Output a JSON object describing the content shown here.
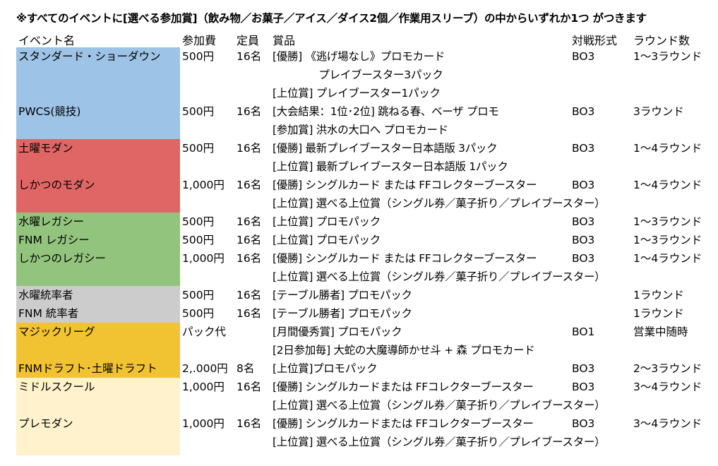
{
  "notice": "※すべてのイベントに[選べる参加賞]（飲み物／お菓子／アイス／ダイス2個／作業用スリーブ）の中からいずれか1つ がつきます",
  "headers": {
    "event": "イベント名",
    "fee": "参加費",
    "capacity": "定員",
    "prize": "賞品",
    "format": "対戦形式",
    "rounds": "ラウンド数"
  },
  "colors": {
    "blue": "#9dc3e6",
    "red": "#e06666",
    "green": "#93c47d",
    "gray": "#cccccc",
    "yellow": "#f1c232",
    "cream": "#fff2cc"
  },
  "rows": [
    {
      "event": "スタンダード・ショーダウン",
      "fee": "500円",
      "capacity": "16名",
      "prize": "[優勝] 《逃げ場なし》プロモカード",
      "format": "BO3",
      "rounds": "1～3ラウンド"
    },
    {
      "event": "",
      "fee": "",
      "capacity": "",
      "prize": "　　　　 プレイブースター3パック",
      "format": "",
      "rounds": ""
    },
    {
      "event": "",
      "fee": "",
      "capacity": "",
      "prize": "[上位賞] プレイブースター1パック",
      "format": "",
      "rounds": ""
    },
    {
      "event": "PWCS(競技)",
      "fee": "500円",
      "capacity": "16名",
      "prize": "[大会結果：1位･2位] 跳ねる春、ベーザ プロモ",
      "format": "BO3",
      "rounds": "3ラウンド"
    },
    {
      "event": "",
      "fee": "",
      "capacity": "",
      "prize": "[参加賞] 洪水の大口へ プロモカード",
      "format": "",
      "rounds": ""
    },
    {
      "event": "土曜モダン",
      "fee": "500円",
      "capacity": "16名",
      "prize": "[優勝] 最新プレイブースター日本語版 3パック",
      "format": "BO3",
      "rounds": "1～4ラウンド"
    },
    {
      "event": "",
      "fee": "",
      "capacity": "",
      "prize": "[上位賞] 最新プレイブースター日本語版 1パック",
      "format": "",
      "rounds": ""
    },
    {
      "event": "しかつのモダン",
      "fee": "1,000円",
      "capacity": "16名",
      "prize": "[優勝] シングルカード または FFコレクターブースター",
      "format": "BO3",
      "rounds": "1～4ラウンド"
    },
    {
      "event": "",
      "fee": "",
      "capacity": "",
      "prize": "[上位賞] 選べる上位賞（シングル券／菓子折り／プレイブースター）",
      "format": "",
      "rounds": ""
    },
    {
      "event": "水曜レガシー",
      "fee": "500円",
      "capacity": "16名",
      "prize": "[上位賞] プロモパック",
      "format": "BO3",
      "rounds": "1～3ラウンド"
    },
    {
      "event": "FNM レガシー",
      "fee": "500円",
      "capacity": "16名",
      "prize": "[上位賞] プロモパック",
      "format": "BO3",
      "rounds": "1～3ラウンド"
    },
    {
      "event": "しかつのレガシー",
      "fee": "1,000円",
      "capacity": "16名",
      "prize": "[優勝] シングルカード または FFコレクターブースター",
      "format": "BO3",
      "rounds": "1～4ラウンド"
    },
    {
      "event": "",
      "fee": "",
      "capacity": "",
      "prize": "[上位賞] 選べる上位賞（シングル券／菓子折り／プレイブースター）",
      "format": "",
      "rounds": ""
    },
    {
      "event": "水曜統率者",
      "fee": "500円",
      "capacity": "16名",
      "prize": "[テーブル勝者] プロモパック",
      "format": "",
      "rounds": "1ラウンド"
    },
    {
      "event": "FNM 統率者",
      "fee": "500円",
      "capacity": "16名",
      "prize": "[テーブル勝者] プロモパック",
      "format": "",
      "rounds": "1ラウンド"
    },
    {
      "event": "マジックリーグ",
      "fee": "パック代",
      "capacity": "",
      "prize": "[月間優秀賞] プロモパック",
      "format": "BO1",
      "rounds": "営業中随時"
    },
    {
      "event": "",
      "fee": "",
      "capacity": "",
      "prize": "[2日参加毎]  大蛇の大魔導師かせ斗 + 森 プロモカード",
      "format": "",
      "rounds": ""
    },
    {
      "event": "FNMドラフト･土曜ドラフト",
      "fee": "2,.000円",
      "capacity": "8名",
      "prize": "[上位賞]プロモパック",
      "format": "BO3",
      "rounds": "2～3ラウンド"
    },
    {
      "event": "ミドルスクール",
      "fee": "1,000円",
      "capacity": "16名",
      "prize": "[優勝] シングルカードまたは FFコレクターブースター",
      "format": "BO3",
      "rounds": "3～4ラウンド"
    },
    {
      "event": "",
      "fee": "",
      "capacity": "",
      "prize": "[上位賞] 選べる上位賞（シングル券／菓子折り／プレイブースター）",
      "format": "",
      "rounds": ""
    },
    {
      "event": "プレモダン",
      "fee": "1,000円",
      "capacity": "16名",
      "prize": "[優勝] シングルカードまたは FFコレクターブースター",
      "format": "BO3",
      "rounds": "3～4ラウンド"
    },
    {
      "event": "",
      "fee": "",
      "capacity": "",
      "prize": "[上位賞] 選べる上位賞（シングル券／菓子折り／プレイブースター）",
      "format": "",
      "rounds": ""
    }
  ]
}
